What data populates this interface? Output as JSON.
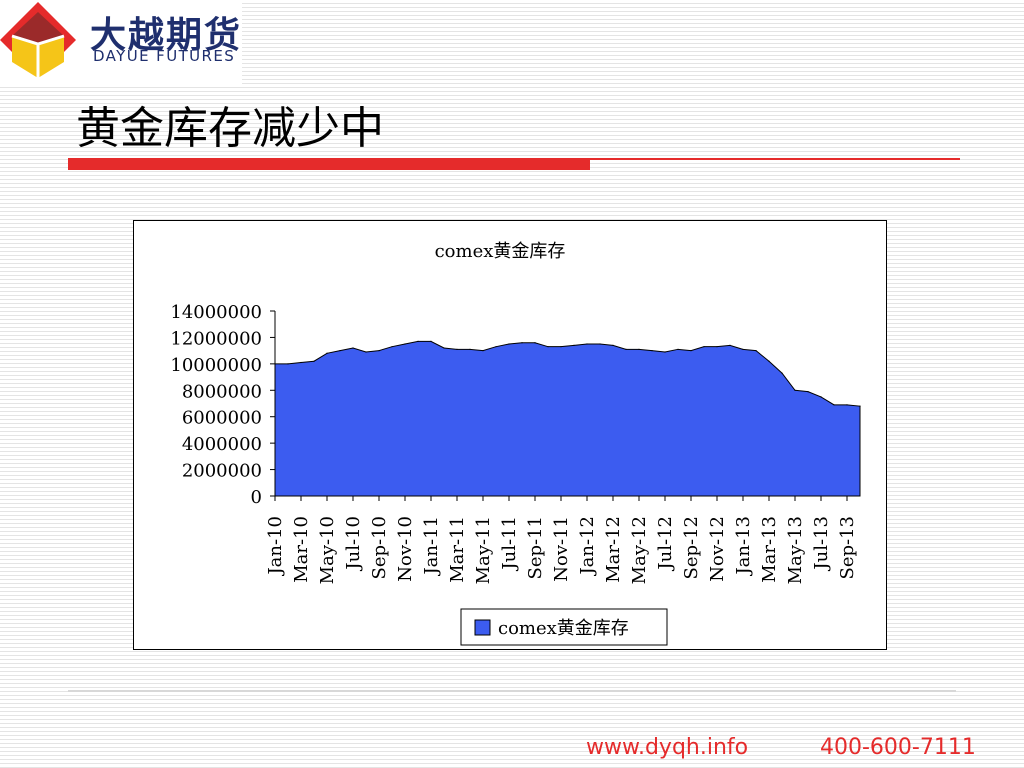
{
  "brand": {
    "name_cn": "大越期货",
    "name_en": "DAYUE FUTURES"
  },
  "page": {
    "title": "黄金库存减少中"
  },
  "footer": {
    "url": "www.dyqh.info",
    "phone": "400-600-7111"
  },
  "colors": {
    "accent": "#e52b2b",
    "brand": "#1f2f6e",
    "series": "#3c5cf0"
  },
  "chart_data": {
    "type": "area",
    "title": "comex黄金库存",
    "xlabel": "",
    "ylabel": "",
    "ylim": [
      0,
      14000000
    ],
    "yticks": [
      0,
      2000000,
      4000000,
      6000000,
      8000000,
      10000000,
      12000000,
      14000000
    ],
    "ytick_labels": [
      "0",
      "2000000",
      "4000000",
      "6000000",
      "8000000",
      "10000000",
      "12000000",
      "14000000"
    ],
    "x_tick_labels": [
      "Jan-10",
      "Mar-10",
      "May-10",
      "Jul-10",
      "Sep-10",
      "Nov-10",
      "Jan-11",
      "Mar-11",
      "May-11",
      "Jul-11",
      "Sep-11",
      "Nov-11",
      "Jan-12",
      "Mar-12",
      "May-12",
      "Jul-12",
      "Sep-12",
      "Nov-12",
      "Jan-13",
      "Mar-13",
      "May-13",
      "Jul-13",
      "Sep-13"
    ],
    "grid": false,
    "legend": "bottom",
    "series": [
      {
        "name": "comex黄金库存",
        "x": [
          "2010-01",
          "2010-02",
          "2010-03",
          "2010-04",
          "2010-05",
          "2010-06",
          "2010-07",
          "2010-08",
          "2010-09",
          "2010-10",
          "2010-11",
          "2010-12",
          "2011-01",
          "2011-02",
          "2011-03",
          "2011-04",
          "2011-05",
          "2011-06",
          "2011-07",
          "2011-08",
          "2011-09",
          "2011-10",
          "2011-11",
          "2011-12",
          "2012-01",
          "2012-02",
          "2012-03",
          "2012-04",
          "2012-05",
          "2012-06",
          "2012-07",
          "2012-08",
          "2012-09",
          "2012-10",
          "2012-11",
          "2012-12",
          "2013-01",
          "2013-02",
          "2013-03",
          "2013-04",
          "2013-05",
          "2013-06",
          "2013-07",
          "2013-08",
          "2013-09",
          "2013-10"
        ],
        "values": [
          10000000,
          10000000,
          10100000,
          10200000,
          10800000,
          11000000,
          11200000,
          10900000,
          11000000,
          11300000,
          11500000,
          11700000,
          11700000,
          11200000,
          11100000,
          11100000,
          11000000,
          11300000,
          11500000,
          11600000,
          11600000,
          11300000,
          11300000,
          11400000,
          11500000,
          11500000,
          11400000,
          11100000,
          11100000,
          11000000,
          10900000,
          11100000,
          11000000,
          11300000,
          11300000,
          11400000,
          11100000,
          11000000,
          10200000,
          9300000,
          8000000,
          7900000,
          7500000,
          6900000,
          6900000,
          6800000
        ]
      }
    ]
  }
}
